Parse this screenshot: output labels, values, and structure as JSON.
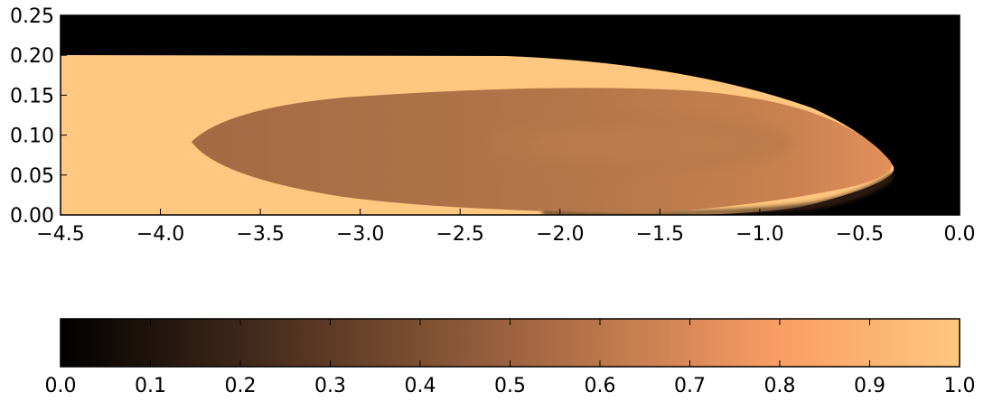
{
  "chart_data": {
    "type": "heatmap",
    "x_ticks": [
      "−4.5",
      "−4.0",
      "−3.5",
      "−3.0",
      "−2.5",
      "−2.0",
      "−1.5",
      "−1.0",
      "−0.5",
      "0.0"
    ],
    "y_ticks": [
      "0.00",
      "0.05",
      "0.10",
      "0.15",
      "0.20",
      "0.25"
    ],
    "xlim": [
      -4.5,
      0.0
    ],
    "ylim": [
      0.0,
      0.25
    ],
    "colormap": "copper",
    "colorbar": {
      "orientation": "horizontal",
      "range": [
        0.0,
        1.0
      ],
      "ticks": [
        "0.0",
        "0.1",
        "0.2",
        "0.3",
        "0.4",
        "0.5",
        "0.6",
        "0.7",
        "0.8",
        "0.9",
        "1.0"
      ]
    },
    "regions": [
      {
        "name": "background",
        "value": 0.0
      },
      {
        "name": "upper layer",
        "y_top": 0.2,
        "value": 1.0
      },
      {
        "name": "inner lens",
        "x_range": [
          -3.85,
          -0.35
        ],
        "y_center": 0.09,
        "value": 0.55
      },
      {
        "name": "lens core",
        "x_range": [
          -2.3,
          -1.0
        ],
        "y_center": 0.09,
        "value": 0.58
      }
    ],
    "grid": false,
    "colors": {
      "c0": "#000000",
      "c1": "#FFC77F",
      "mid": "#B77A4D"
    }
  }
}
